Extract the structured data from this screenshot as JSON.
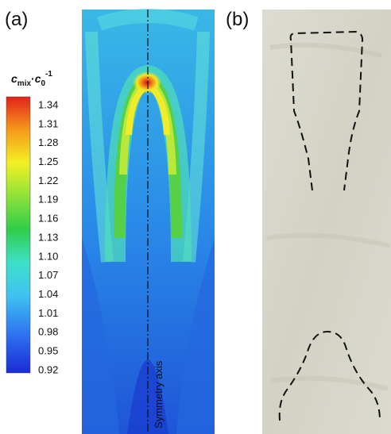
{
  "panels": {
    "a": "(a)",
    "b": "(b)"
  },
  "colorbar": {
    "label_parts": [
      "c",
      "mix",
      "·",
      "c",
      "0",
      "-1"
    ],
    "ticks": [
      "1.34",
      "1.31",
      "1.28",
      "1.25",
      "1.22",
      "1.19",
      "1.16",
      "1.13",
      "1.10",
      "1.07",
      "1.04",
      "1.01",
      "0.98",
      "0.95",
      "0.92"
    ]
  },
  "annotation": "Symmetry axis"
}
